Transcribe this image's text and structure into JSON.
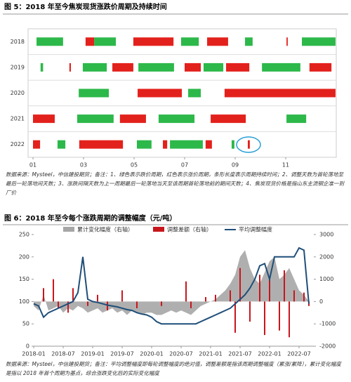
{
  "chart_data": [
    {
      "type": "gantt",
      "title": "图 5：2018 年至今焦炭现货涨跌价周期及持续时间",
      "note": "数据来源：Mysteel，中信建投期货；备注：1、绿色表示跌价周期，红色表示涨价周期，条形长度表示周期持续时间；2、调整天数为首轮落地至最后一轮落地间天数；3、涨跌间隔天数为上一周期最后一轮落地当天至该周期首轮落地前的期间天数；4、焦炭现货价格是指山东主流钢企准一到厂价",
      "rise_color": "#e3211c",
      "fall_color": "#2db84a",
      "xlim": [
        1,
        13
      ],
      "xticks": [
        {
          "value": 1,
          "label": "01"
        },
        {
          "value": 3,
          "label": "03"
        },
        {
          "value": 5,
          "label": "05"
        },
        {
          "value": 7,
          "label": "07"
        },
        {
          "value": 9,
          "label": "09"
        },
        {
          "value": 11,
          "label": "11"
        }
      ],
      "rows": [
        {
          "label": "2018",
          "rise": [
            [
              3.08,
              3.42
            ],
            [
              4.97,
              6.56
            ],
            [
              7.89,
              8.72
            ],
            [
              11.03,
              11.08
            ]
          ],
          "fall": [
            [
              1.14,
              2.19
            ],
            [
              3.42,
              4.28
            ],
            [
              6.86,
              7.56
            ],
            [
              9.39,
              9.69
            ],
            [
              11.64,
              12.97
            ]
          ]
        },
        {
          "label": "2019",
          "rise": [
            [
              2.44,
              2.5
            ],
            [
              4.14,
              4.97
            ],
            [
              7.0,
              7.64
            ],
            [
              8.64,
              9.56
            ],
            [
              11.94,
              12.81
            ]
          ],
          "fall": [
            [
              1.3,
              1.4
            ],
            [
              2.97,
              3.92
            ],
            [
              5.17,
              6.58
            ],
            [
              7.75,
              8.53
            ],
            [
              10.06,
              11.58
            ]
          ]
        },
        {
          "label": "2020",
          "rise": [
            [
              5.14,
              6.89
            ],
            [
              8.58,
              12.97
            ]
          ],
          "fall": [
            [
              2.81,
              4.0
            ],
            [
              7.14,
              7.64
            ]
          ]
        },
        {
          "label": "2021",
          "rise": [
            [
              1.0,
              1.86
            ],
            [
              4.44,
              5.47
            ],
            [
              8.03,
              9.42
            ]
          ],
          "fall": [
            [
              2.75,
              4.19
            ],
            [
              5.97,
              7.39
            ],
            [
              11.03,
              11.81
            ]
          ]
        },
        {
          "label": "2022",
          "rise": [
            [
              1.0,
              1.28
            ],
            [
              2.83,
              4.56
            ],
            [
              6.14,
              6.31
            ],
            [
              7.83,
              8.08
            ],
            [
              9.5,
              9.58
            ]
          ],
          "fall": [
            [
              1.97,
              2.28
            ],
            [
              5.11,
              5.69
            ],
            [
              6.42,
              7.72
            ],
            [
              8.86,
              8.97
            ]
          ]
        }
      ]
    },
    {
      "type": "combo",
      "title": "图 6：2018 年至今每个涨跌周期的调整幅度（元/吨）",
      "note": "数据来源：Mysteel，中信建投期货；备注：平均调整幅度即每轮调整幅度的绝对值，调整差额是指该周期调整幅度（累涨/累降），累计变化幅度是指以 2018 年首个周期为基点，综合涨跌变化后的实际变化幅度",
      "x": [
        "2018-01",
        "2018-02",
        "2018-03",
        "2018-04",
        "2018-05",
        "2018-06",
        "2018-07",
        "2018-08",
        "2018-09",
        "2018-10",
        "2018-11",
        "2018-12",
        "2019-01",
        "2019-02",
        "2019-03",
        "2019-04",
        "2019-05",
        "2019-06",
        "2019-07",
        "2019-08",
        "2019-09",
        "2019-10",
        "2019-11",
        "2019-12",
        "2020-01",
        "2020-02",
        "2020-03",
        "2020-04",
        "2020-05",
        "2020-06",
        "2020-07",
        "2020-08",
        "2020-09",
        "2020-10",
        "2020-11",
        "2020-12",
        "2021-01",
        "2021-02",
        "2021-03",
        "2021-04",
        "2021-05",
        "2021-06",
        "2021-07",
        "2021-08",
        "2021-09",
        "2021-10",
        "2021-11",
        "2021-12",
        "2022-01",
        "2022-02",
        "2022-03",
        "2022-04",
        "2022-05",
        "2022-06",
        "2022-07",
        "2022-08",
        "2022-09"
      ],
      "xlim": [
        "2018-01",
        "2022-10"
      ],
      "xticks": [
        "2018-01",
        "2018-07",
        "2019-01",
        "2019-07",
        "2020-01",
        "2020-07",
        "2021-01",
        "2021-07",
        "2022-01",
        "2022-07"
      ],
      "ylim": [
        0,
        250
      ],
      "yticks": [
        0,
        50,
        100,
        150,
        200,
        250
      ],
      "y2lim": [
        -2000,
        3000
      ],
      "y2ticks": [
        -2000,
        -1000,
        0,
        1000,
        2000,
        3000
      ],
      "series": [
        {
          "name": "累计变化幅度（右轴）",
          "kind": "area",
          "axis": "y2",
          "color": "#a6a6a6",
          "values": [
            -200,
            -400,
            300,
            -400,
            -300,
            -200,
            -500,
            -300,
            -400,
            -200,
            -300,
            -500,
            -400,
            -300,
            -500,
            -400,
            -300,
            -500,
            -400,
            -600,
            -400,
            -500,
            -600,
            -500,
            -500,
            -600,
            -600,
            -500,
            -400,
            -500,
            -400,
            -500,
            -600,
            -400,
            -200,
            -100,
            0,
            100,
            300,
            500,
            800,
            1200,
            2000,
            2300,
            1500,
            1000,
            800,
            1300,
            1800,
            2000,
            1000,
            1200,
            1500,
            1000,
            500,
            300,
            0
          ]
        },
        {
          "name": "调整差额（右轴）",
          "kind": "bar",
          "axis": "y2",
          "color": "#c8161d",
          "values": [
            null,
            null,
            600,
            null,
            1000,
            -300,
            null,
            -500,
            600,
            null,
            null,
            -200,
            null,
            300,
            null,
            -400,
            null,
            null,
            500,
            null,
            null,
            -300,
            null,
            null,
            null,
            null,
            -200,
            null,
            null,
            null,
            null,
            900,
            -300,
            null,
            null,
            200,
            null,
            300,
            null,
            null,
            500,
            -1400,
            1500,
            null,
            -900,
            null,
            1200,
            -1500,
            1000,
            null,
            -1300,
            1400,
            -1600,
            500,
            null,
            400,
            -200
          ]
        },
        {
          "name": "平均调整幅度",
          "kind": "line",
          "color": "#1f4e79",
          "values": [
            95,
            90,
            65,
            75,
            80,
            85,
            90,
            95,
            100,
            120,
            200,
            105,
            100,
            98,
            95,
            92,
            90,
            88,
            85,
            82,
            80,
            75,
            72,
            70,
            65,
            55,
            50,
            50,
            50,
            50,
            50,
            50,
            50,
            50,
            55,
            60,
            65,
            70,
            75,
            80,
            85,
            95,
            105,
            115,
            130,
            150,
            180,
            185,
            150,
            200,
            200,
            200,
            200,
            200,
            220,
            215,
            95
          ]
        }
      ]
    }
  ]
}
